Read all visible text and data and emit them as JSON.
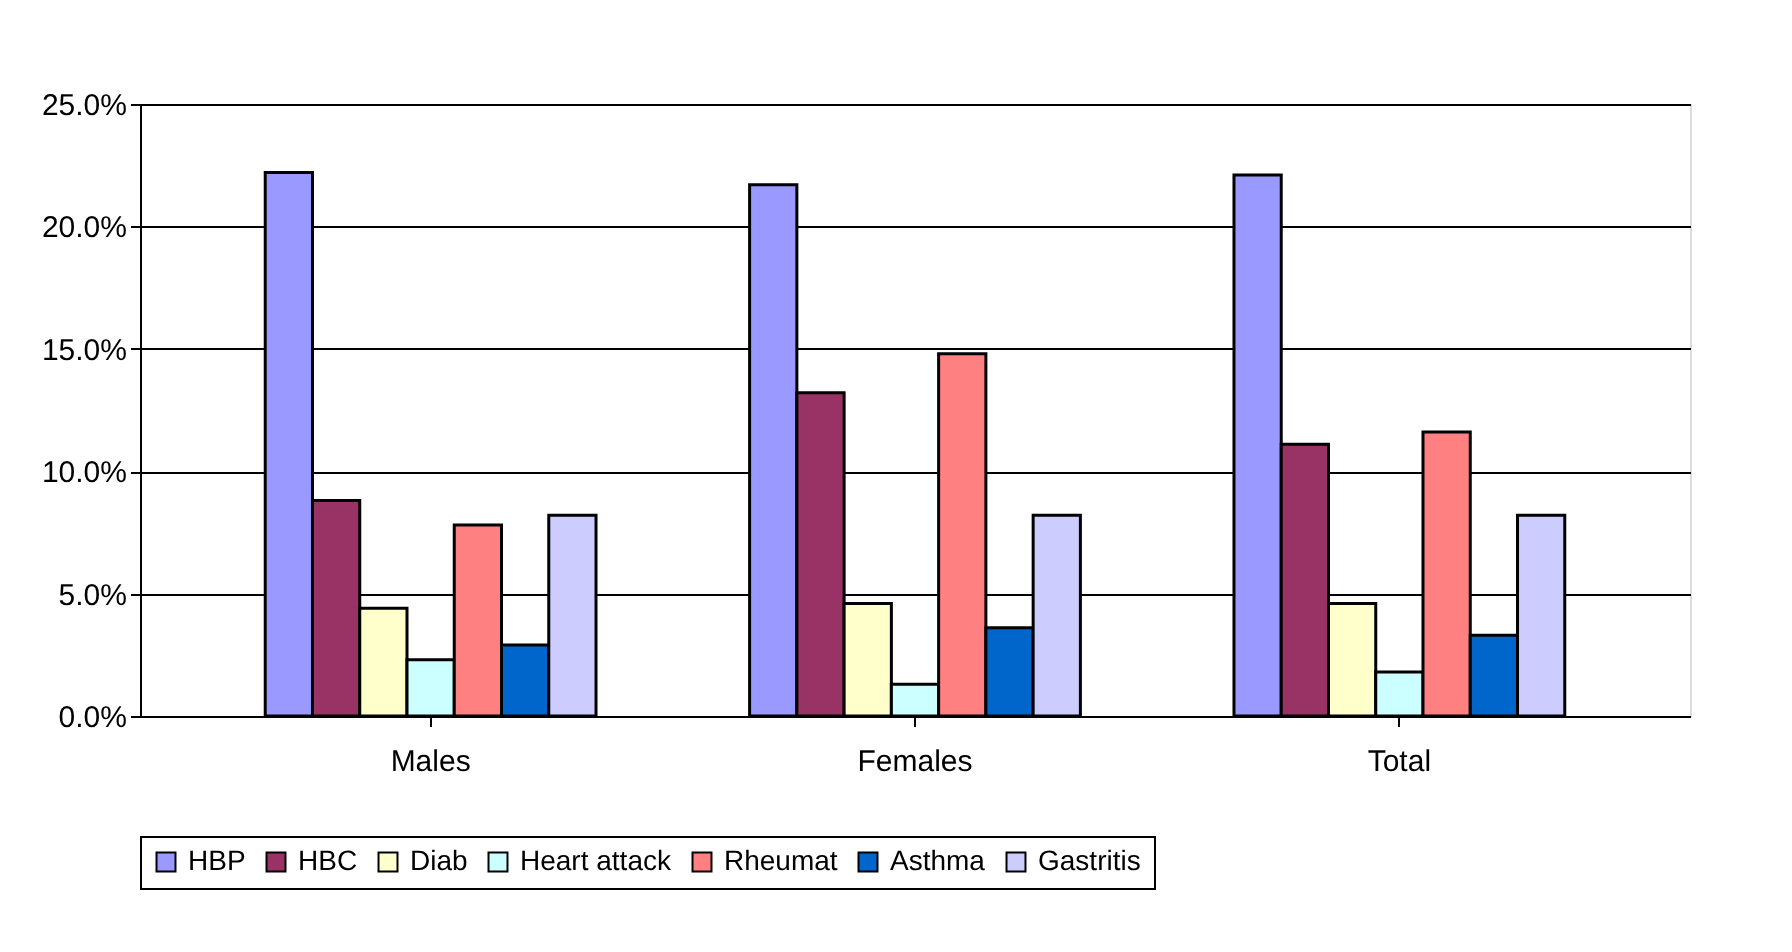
{
  "chart_data": {
    "type": "bar",
    "categories": [
      "Males",
      "Females",
      "Total"
    ],
    "series": [
      {
        "name": "HBP",
        "color": "#9999ff",
        "values": [
          22.2,
          21.7,
          22.1
        ]
      },
      {
        "name": "HBC",
        "color": "#993366",
        "values": [
          8.8,
          13.2,
          11.1
        ]
      },
      {
        "name": "Diab",
        "color": "#ffffcc",
        "values": [
          4.4,
          4.6,
          4.6
        ]
      },
      {
        "name": "Heart attack",
        "color": "#ccffff",
        "values": [
          2.3,
          1.3,
          1.8
        ]
      },
      {
        "name": "Rheumat",
        "color": "#ff8080",
        "values": [
          7.8,
          14.8,
          11.6
        ]
      },
      {
        "name": "Asthma",
        "color": "#0066cc",
        "values": [
          2.9,
          3.6,
          3.3
        ]
      },
      {
        "name": "Gastritis",
        "color": "#ccccff",
        "values": [
          8.2,
          8.2,
          8.2
        ]
      }
    ],
    "ylim": [
      0,
      25
    ],
    "yticks": [
      {
        "value": 0,
        "label": "0.0%"
      },
      {
        "value": 5,
        "label": "5.0%"
      },
      {
        "value": 10,
        "label": "10.0%"
      },
      {
        "value": 15,
        "label": "15.0%"
      },
      {
        "value": 20,
        "label": "20.0%"
      },
      {
        "value": 25,
        "label": "25.0%"
      }
    ],
    "grid": "y",
    "legend": "bottom"
  }
}
